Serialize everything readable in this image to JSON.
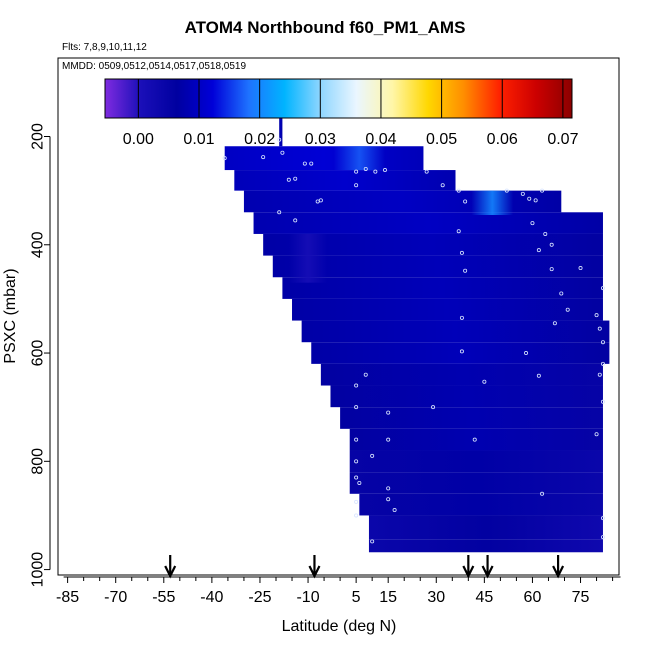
{
  "chart_data": {
    "type": "heatmap",
    "title": "ATOM4 Northbound f60_PM1_AMS",
    "subtitle_flights": "Flts: 7,8,9,10,11,12",
    "subtitle_dates": "MMDD: 0509,0512,0514,0517,0518,0519",
    "xlabel": "Latitude (deg N)",
    "ylabel": "PSXC (mbar)",
    "xlim": [
      -88,
      87
    ],
    "ylim": [
      1010,
      55
    ],
    "x_ticks": [
      -85,
      -70,
      -55,
      -40,
      -25,
      -10,
      5,
      15,
      30,
      45,
      60,
      75
    ],
    "x_tick_labels": [
      "-85",
      "-70",
      "-55",
      "-40",
      "-25",
      "-10",
      "5",
      "15",
      "30",
      "45",
      "60",
      "75"
    ],
    "y_ticks": [
      200,
      400,
      600,
      800,
      1000
    ],
    "y_tick_labels": [
      "200",
      "400",
      "600",
      "800",
      "1000"
    ],
    "colorbar": {
      "range": [
        -0.0055,
        0.0715
      ],
      "ticks": [
        0.0,
        0.01,
        0.02,
        0.03,
        0.04,
        0.05,
        0.06,
        0.07
      ],
      "tick_labels": [
        "0.00",
        "0.01",
        "0.02",
        "0.03",
        "0.04",
        "0.05",
        "0.06",
        "0.07"
      ],
      "colors": [
        "#7f2be0",
        "#1a0fb8",
        "#0000a0",
        "#0000d8",
        "#1e72ff",
        "#00b4ff",
        "#8fd6ff",
        "#eaf6ff",
        "#fff6a8",
        "#ffd700",
        "#ff8c00",
        "#ff2000",
        "#cc0000",
        "#8c0000"
      ]
    },
    "arrows_latitude": [
      -53,
      -8,
      40,
      46,
      68
    ],
    "field_rows": [
      {
        "p_top": 218,
        "p_bottom": 262,
        "lat_min": -36,
        "lat_max": 26,
        "value": 0.009
      },
      {
        "p_top": 262,
        "p_bottom": 300,
        "lat_min": -33,
        "lat_max": 36,
        "value": 0.008
      },
      {
        "p_top": 300,
        "p_bottom": 340,
        "lat_min": -30,
        "lat_max": 69,
        "value": 0.007
      },
      {
        "p_top": 340,
        "p_bottom": 380,
        "lat_min": -27,
        "lat_max": 82,
        "value": 0.007
      },
      {
        "p_top": 380,
        "p_bottom": 420,
        "lat_min": -24,
        "lat_max": 82,
        "value": 0.006
      },
      {
        "p_top": 420,
        "p_bottom": 460,
        "lat_min": -21,
        "lat_max": 82,
        "value": 0.006
      },
      {
        "p_top": 460,
        "p_bottom": 500,
        "lat_min": -18,
        "lat_max": 82,
        "value": 0.006
      },
      {
        "p_top": 500,
        "p_bottom": 540,
        "lat_min": -15,
        "lat_max": 82,
        "value": 0.006
      },
      {
        "p_top": 540,
        "p_bottom": 580,
        "lat_min": -12,
        "lat_max": 84,
        "value": 0.006
      },
      {
        "p_top": 580,
        "p_bottom": 620,
        "lat_min": -9,
        "lat_max": 84,
        "value": 0.006
      },
      {
        "p_top": 620,
        "p_bottom": 660,
        "lat_min": -6,
        "lat_max": 82,
        "value": 0.005
      },
      {
        "p_top": 660,
        "p_bottom": 700,
        "lat_min": -3,
        "lat_max": 82,
        "value": 0.005
      },
      {
        "p_top": 700,
        "p_bottom": 740,
        "lat_min": 0,
        "lat_max": 82,
        "value": 0.005
      },
      {
        "p_top": 740,
        "p_bottom": 780,
        "lat_min": 3,
        "lat_max": 82,
        "value": 0.005
      },
      {
        "p_top": 780,
        "p_bottom": 820,
        "lat_min": 3,
        "lat_max": 82,
        "value": 0.004
      },
      {
        "p_top": 820,
        "p_bottom": 860,
        "lat_min": 3,
        "lat_max": 82,
        "value": 0.004
      },
      {
        "p_top": 860,
        "p_bottom": 900,
        "lat_min": 6,
        "lat_max": 82,
        "value": 0.004
      },
      {
        "p_top": 900,
        "p_bottom": 945,
        "lat_min": 9,
        "lat_max": 82,
        "value": 0.003
      },
      {
        "p_top": 945,
        "p_bottom": 968,
        "lat_min": 9,
        "lat_max": 82,
        "value": 0.003
      }
    ],
    "field_spike": {
      "p_top": 155,
      "p_bottom": 218,
      "lat_min": -19,
      "lat_max": -18,
      "value": 0.006
    },
    "highlights": [
      {
        "p_top": 218,
        "p_bottom": 262,
        "lat_min": -2,
        "lat_max": 14,
        "value": 0.017
      },
      {
        "p_top": 300,
        "p_bottom": 345,
        "lat_min": 41,
        "lat_max": 54,
        "value": 0.02
      },
      {
        "p_top": 380,
        "p_bottom": 470,
        "lat_min": -16,
        "lat_max": -4,
        "value": 0.001
      }
    ],
    "sample_points": [
      [
        -36,
        240
      ],
      [
        -24,
        238
      ],
      [
        -18,
        230
      ],
      [
        -19,
        206
      ],
      [
        -16,
        280
      ],
      [
        -14,
        278
      ],
      [
        -11,
        250
      ],
      [
        -9,
        250
      ],
      [
        -7,
        320
      ],
      [
        -6,
        318
      ],
      [
        5,
        265
      ],
      [
        8,
        260
      ],
      [
        5,
        290
      ],
      [
        11,
        265
      ],
      [
        14,
        262
      ],
      [
        27,
        265
      ],
      [
        -19,
        340
      ],
      [
        -14,
        355
      ],
      [
        32,
        290
      ],
      [
        37,
        300
      ],
      [
        52,
        300
      ],
      [
        57,
        306
      ],
      [
        61,
        318
      ],
      [
        63,
        300
      ],
      [
        37,
        375
      ],
      [
        59,
        315
      ],
      [
        39,
        320
      ],
      [
        38,
        415
      ],
      [
        39,
        448
      ],
      [
        38,
        535
      ],
      [
        38,
        597
      ],
      [
        45,
        653
      ],
      [
        60,
        360
      ],
      [
        64,
        380
      ],
      [
        66,
        400
      ],
      [
        62,
        410
      ],
      [
        66,
        445
      ],
      [
        69,
        490
      ],
      [
        71,
        520
      ],
      [
        75,
        443
      ],
      [
        80,
        530
      ],
      [
        82,
        480
      ],
      [
        81,
        555
      ],
      [
        82,
        580
      ],
      [
        82,
        620
      ],
      [
        81,
        640
      ],
      [
        82,
        690
      ],
      [
        80,
        750
      ],
      [
        58,
        600
      ],
      [
        62,
        642
      ],
      [
        67,
        545
      ],
      [
        5,
        660
      ],
      [
        8,
        640
      ],
      [
        5,
        700
      ],
      [
        15,
        710
      ],
      [
        5,
        760
      ],
      [
        15,
        760
      ],
      [
        5,
        800
      ],
      [
        10,
        790
      ],
      [
        5,
        830
      ],
      [
        6,
        840
      ],
      [
        15,
        850
      ],
      [
        5,
        875
      ],
      [
        15,
        870
      ],
      [
        5,
        900
      ],
      [
        17,
        890
      ],
      [
        29,
        700
      ],
      [
        42,
        760
      ],
      [
        63,
        860
      ],
      [
        82,
        905
      ],
      [
        82,
        940
      ],
      [
        10,
        948
      ]
    ]
  }
}
